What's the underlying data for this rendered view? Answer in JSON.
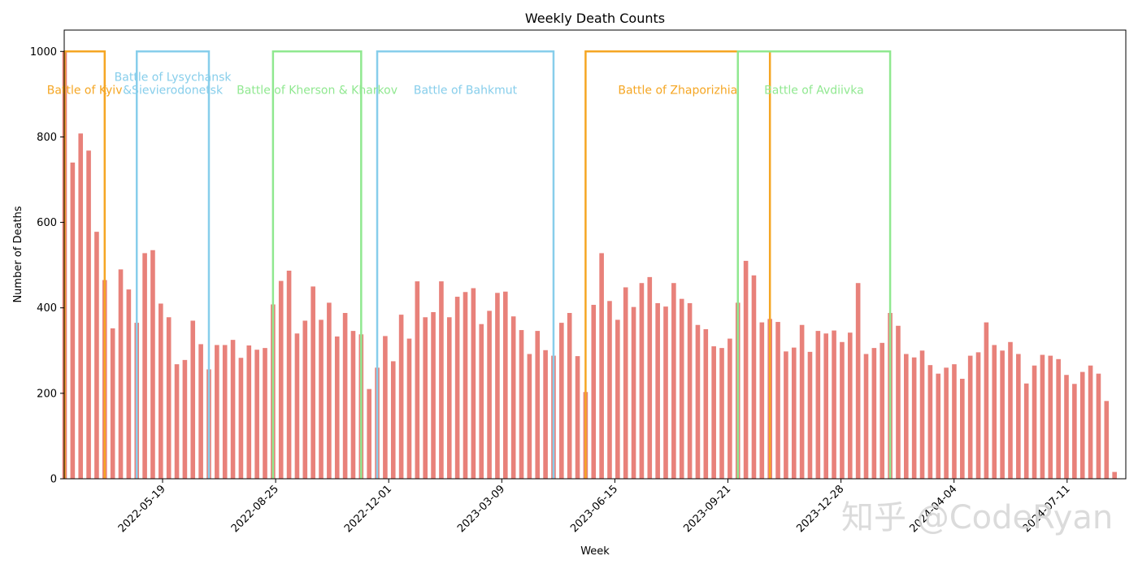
{
  "chart_data": {
    "type": "bar",
    "title": "Weekly Death Counts",
    "xlabel": "Week",
    "ylabel": "Number of Deaths",
    "ylim": [
      0,
      1050
    ],
    "yticks": [
      0,
      200,
      400,
      600,
      800,
      1000
    ],
    "x_tick_labels": [
      "2022-05-19",
      "2022-08-25",
      "2022-12-01",
      "2023-03-09",
      "2023-06-15",
      "2023-09-21",
      "2023-12-28",
      "2024-04-04",
      "2024-07-11"
    ],
    "bar_color": "#e8817a",
    "values": [
      1000,
      740,
      808,
      768,
      578,
      465,
      352,
      490,
      443,
      365,
      528,
      535,
      410,
      378,
      268,
      278,
      370,
      315,
      256,
      313,
      313,
      325,
      283,
      312,
      302,
      306,
      408,
      463,
      487,
      340,
      370,
      450,
      372,
      412,
      333,
      388,
      346,
      338,
      210,
      260,
      334,
      275,
      384,
      328,
      462,
      378,
      390,
      462,
      378,
      426,
      437,
      446,
      362,
      393,
      435,
      438,
      380,
      348,
      292,
      346,
      301,
      288,
      365,
      388,
      287,
      203,
      407,
      528,
      416,
      372,
      448,
      402,
      458,
      472,
      411,
      403,
      458,
      421,
      411,
      360,
      350,
      310,
      306,
      328,
      412,
      510,
      476,
      366,
      374,
      367,
      298,
      307,
      360,
      297,
      346,
      340,
      347,
      320,
      342,
      458,
      292,
      306,
      318,
      388,
      358,
      292,
      284,
      300,
      266,
      246,
      260,
      268,
      234,
      288,
      296,
      366,
      313,
      300,
      320,
      292,
      223,
      265,
      290,
      288,
      280,
      243,
      222,
      250,
      265,
      246,
      182,
      16
    ],
    "battles": [
      {
        "name": "Battle of Kyiv",
        "color": "#f5a623",
        "start_index": 0,
        "end_index": 5
      },
      {
        "name": "Battle of Lysychansk\n&Sievierodonetsk",
        "color": "#87ceeb",
        "start_index": 9,
        "end_index": 18
      },
      {
        "name": "Battle of Kherson & Kharkov",
        "color": "#90e890",
        "start_index": 26,
        "end_index": 37
      },
      {
        "name": "Battle of Bahkmut",
        "color": "#87ceeb",
        "start_index": 39,
        "end_index": 61
      },
      {
        "name": "Battle of Zhaporizhia",
        "color": "#f5a623",
        "start_index": 65,
        "end_index": 88
      },
      {
        "name": "Battle of Avdiivka",
        "color": "#90e890",
        "start_index": 84,
        "end_index": 103
      }
    ],
    "battle_box_top": 1000,
    "watermark": "知乎 @CodeRyan"
  }
}
